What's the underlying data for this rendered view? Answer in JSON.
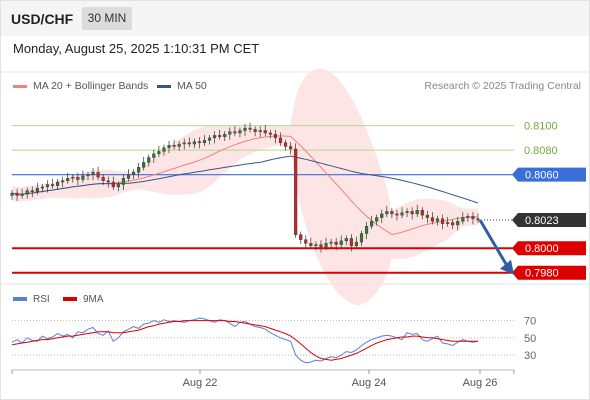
{
  "header": {
    "symbol": "USD/CHF",
    "timeframe": "30 MIN",
    "datetime": "Monday, August 25, 2025 1:10:31 PM CET"
  },
  "legend": {
    "ma20": "MA 20 + Bollinger Bands",
    "ma50": "MA 50",
    "credit": "Research © 2025 Trading Central"
  },
  "rsi_legend": {
    "rsi": "RSI",
    "ma": "9MA"
  },
  "colors": {
    "ma20": "#f08080",
    "ma50": "#33578c",
    "bollinger_fill": "#fde0e0",
    "support_line": "#dd0000",
    "resistance_line": "#b5d88f",
    "pivot_line": "#3a6fd8",
    "current_label": "#333333",
    "candle_up": "#2e7d32",
    "candle_down": "#c62828",
    "rsi_line": "#5b7fd6",
    "rsi_ma_line": "#dd0000",
    "arrow": "#2f5fa0"
  },
  "chart_data": {
    "type": "candlestick",
    "x_tick_labels": [
      "Aug 22",
      "Aug 24",
      "Aug 26"
    ],
    "y_range": [
      0.797,
      0.8125
    ],
    "price_levels": [
      {
        "value": 0.81,
        "label": "0.8100",
        "kind": "resistance"
      },
      {
        "value": 0.808,
        "label": "0.8080",
        "kind": "resistance"
      },
      {
        "value": 0.806,
        "label": "0.8060",
        "kind": "pivot"
      },
      {
        "value": 0.8023,
        "label": "0.8023",
        "kind": "current"
      },
      {
        "value": 0.8,
        "label": "0.8000",
        "kind": "support"
      },
      {
        "value": 0.798,
        "label": "0.7980",
        "kind": "support"
      }
    ],
    "close_prices": [
      0.8045,
      0.8043,
      0.8044,
      0.8047,
      0.8046,
      0.8049,
      0.805,
      0.8052,
      0.8051,
      0.8054,
      0.8055,
      0.8057,
      0.8058,
      0.8056,
      0.8059,
      0.806,
      0.8062,
      0.8058,
      0.8055,
      0.8054,
      0.805,
      0.8052,
      0.8057,
      0.806,
      0.8062,
      0.8066,
      0.807,
      0.8074,
      0.8077,
      0.8079,
      0.8082,
      0.8084,
      0.8083,
      0.8085,
      0.8086,
      0.8085,
      0.8087,
      0.8086,
      0.8088,
      0.809,
      0.8092,
      0.8091,
      0.8093,
      0.8095,
      0.8094,
      0.8096,
      0.8098,
      0.8097,
      0.8095,
      0.8096,
      0.8094,
      0.8093,
      0.809,
      0.8086,
      0.8083,
      0.8081,
      0.8011,
      0.8007,
      0.8004,
      0.8002,
      0.8003,
      0.8001,
      0.8004,
      0.8005,
      0.8003,
      0.8006,
      0.8008,
      0.8002,
      0.8005,
      0.8012,
      0.8018,
      0.8022,
      0.8025,
      0.8028,
      0.803,
      0.8028,
      0.8027,
      0.8029,
      0.803,
      0.8028,
      0.8031,
      0.8027,
      0.8025,
      0.8022,
      0.8024,
      0.802,
      0.8021,
      0.8019,
      0.8022,
      0.8025,
      0.8026,
      0.8024,
      0.8023
    ],
    "forecast_arrow": {
      "from": 0.8023,
      "to": 0.798
    },
    "rsi": {
      "levels": [
        70,
        50,
        30
      ],
      "range": [
        15,
        80
      ],
      "values": [
        45,
        48,
        44,
        50,
        47,
        46,
        52,
        49,
        51,
        55,
        52,
        54,
        50,
        57,
        56,
        60,
        62,
        55,
        53,
        58,
        46,
        50,
        57,
        60,
        63,
        61,
        66,
        67,
        70,
        68,
        71,
        69,
        70,
        69,
        68,
        70,
        71,
        73,
        72,
        70,
        68,
        71,
        70,
        67,
        63,
        68,
        69,
        66,
        63,
        62,
        60,
        56,
        53,
        50,
        48,
        46,
        30,
        24,
        21,
        22,
        24,
        23,
        26,
        28,
        27,
        30,
        34,
        33,
        36,
        41,
        45,
        48,
        50,
        52,
        53,
        52,
        50,
        48,
        56,
        54,
        55,
        48,
        46,
        49,
        52,
        44,
        43,
        41,
        45,
        48,
        46,
        45,
        46
      ],
      "ma_values": [
        42,
        43,
        44,
        45,
        46,
        47,
        48,
        48,
        49,
        50,
        51,
        52,
        52,
        53,
        54,
        55,
        56,
        57,
        57,
        57,
        56,
        56,
        56,
        57,
        58,
        59,
        61,
        63,
        64,
        66,
        67,
        68,
        69,
        69,
        70,
        70,
        70,
        70,
        70,
        70,
        70,
        70,
        70,
        69,
        69,
        68,
        67,
        66,
        65,
        64,
        63,
        61,
        59,
        57,
        55,
        52,
        48,
        43,
        38,
        33,
        29,
        26,
        25,
        24,
        25,
        26,
        28,
        30,
        32,
        35,
        38,
        41,
        44,
        46,
        48,
        49,
        50,
        51,
        51,
        52,
        52,
        51,
        50,
        50,
        49,
        48,
        47,
        46,
        46,
        46,
        46,
        46,
        46
      ]
    }
  }
}
